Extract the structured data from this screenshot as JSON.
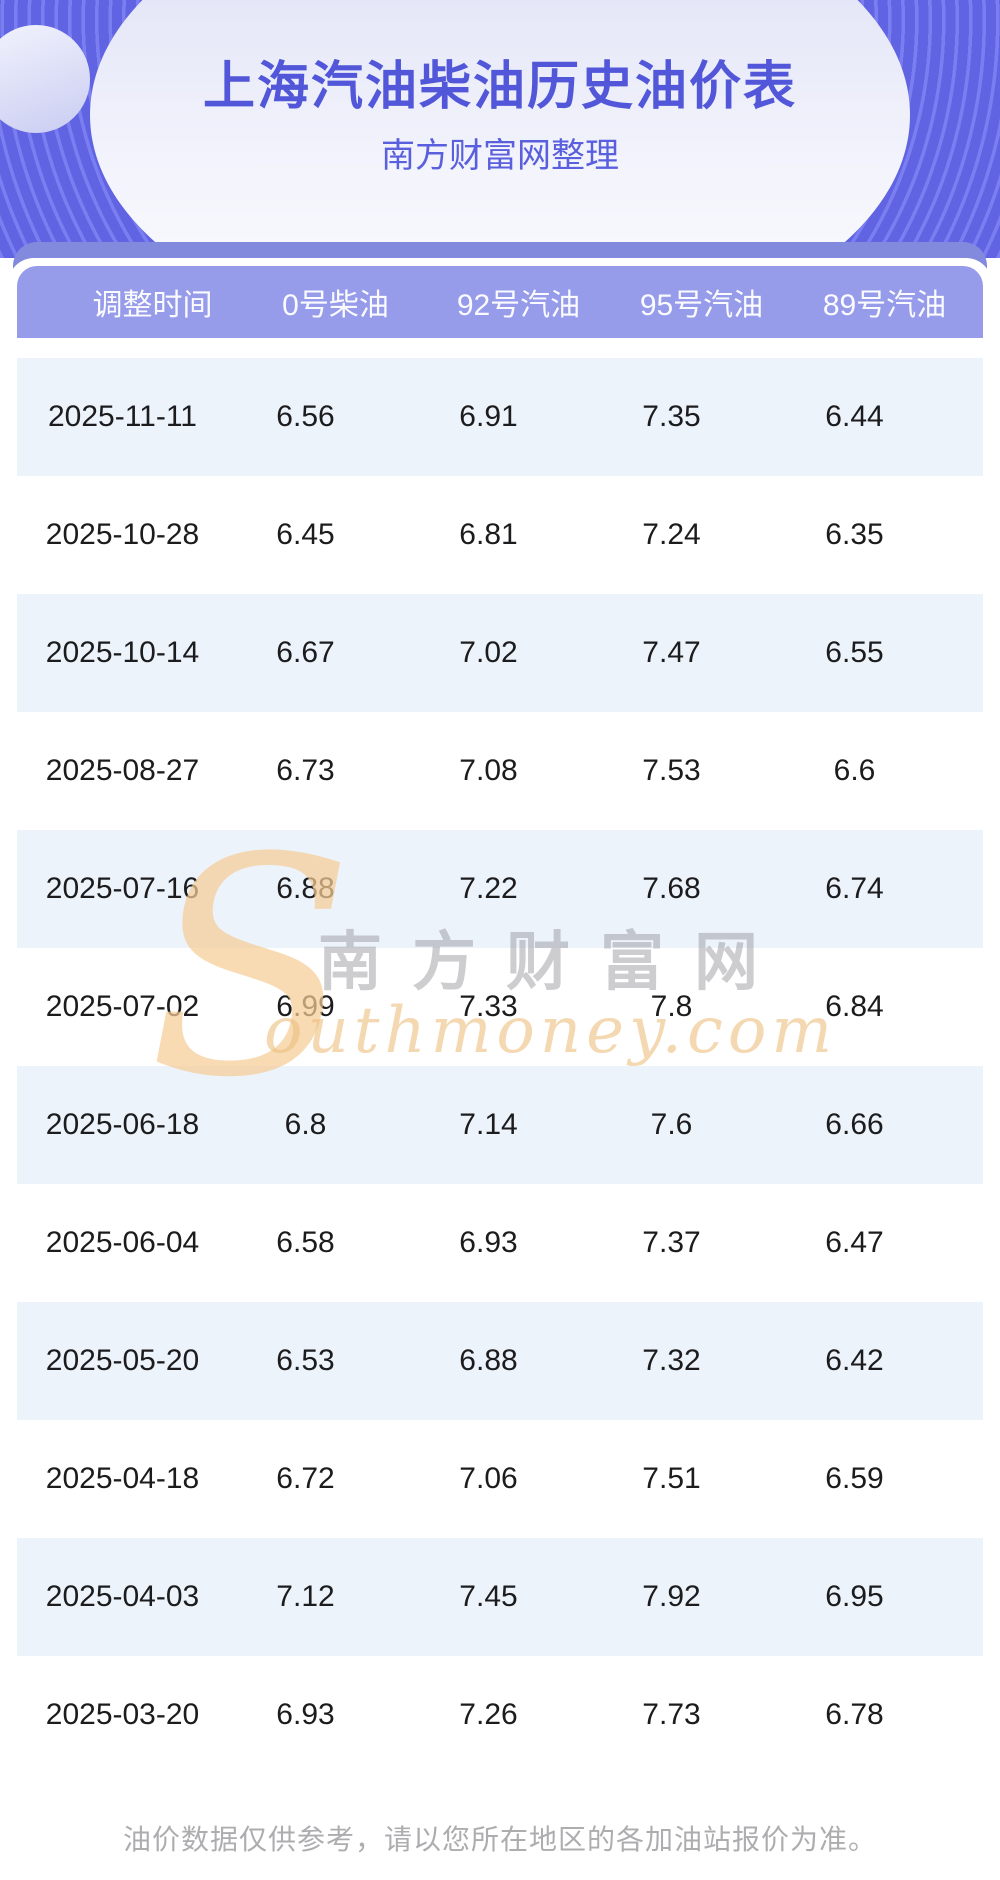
{
  "page": {
    "title": "上海汽油柴油历史油价表",
    "subtitle": "南方财富网整理",
    "footer_note": "油价数据仅供参考，请以您所在地区的各加油站报价为准。"
  },
  "watermark": {
    "initial": "S",
    "cn": "南方财富网",
    "en": "outhmoney.com"
  },
  "table": {
    "columns": [
      "调整时间",
      "0号柴油",
      "92号汽油",
      "95号汽油",
      "89号汽油"
    ],
    "rows": [
      [
        "2025-11-11",
        "6.56",
        "6.91",
        "7.35",
        "6.44"
      ],
      [
        "2025-10-28",
        "6.45",
        "6.81",
        "7.24",
        "6.35"
      ],
      [
        "2025-10-14",
        "6.67",
        "7.02",
        "7.47",
        "6.55"
      ],
      [
        "2025-08-27",
        "6.73",
        "7.08",
        "7.53",
        "6.6"
      ],
      [
        "2025-07-16",
        "6.88",
        "7.22",
        "7.68",
        "6.74"
      ],
      [
        "2025-07-02",
        "6.99",
        "7.33",
        "7.8",
        "6.84"
      ],
      [
        "2025-06-18",
        "6.8",
        "7.14",
        "7.6",
        "6.66"
      ],
      [
        "2025-06-04",
        "6.58",
        "6.93",
        "7.37",
        "6.47"
      ],
      [
        "2025-05-20",
        "6.53",
        "6.88",
        "7.32",
        "6.42"
      ],
      [
        "2025-04-18",
        "6.72",
        "7.06",
        "7.51",
        "6.59"
      ],
      [
        "2025-04-03",
        "7.12",
        "7.45",
        "7.92",
        "6.95"
      ],
      [
        "2025-03-20",
        "6.93",
        "7.26",
        "7.73",
        "6.78"
      ]
    ]
  },
  "colors": {
    "hero_purple": "#6064e3",
    "hero_stripe": "#7a7ef0",
    "band_purple": "#828ade",
    "header_purple": "#969ce9",
    "row_alt_blue": "#edf3fb",
    "title_blue": "#5157d8",
    "watermark_orange": "#eebf7e",
    "footer_gray": "#adadb0"
  }
}
